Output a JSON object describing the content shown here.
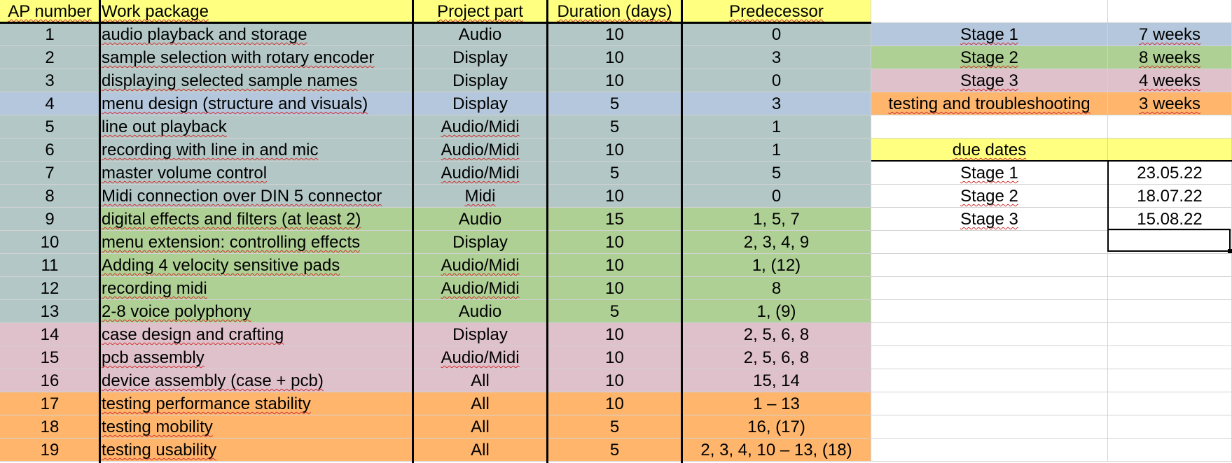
{
  "colors": {
    "header": "#ffff80",
    "teal": "#b3c8c6",
    "blue": "#b4c7dc",
    "green": "#afd095",
    "pink": "#dfc1cb",
    "orange": "#ffb66c",
    "gridline": "#d2d2d2"
  },
  "main_table": {
    "headers": [
      "AP number",
      "Work package",
      "Project part",
      "Duration (days)",
      "Predecessor"
    ],
    "rows": [
      {
        "ap": "1",
        "wp": "audio playback and storage",
        "part": "Audio",
        "dur": "10",
        "pred": "0",
        "bg": "teal",
        "ap_bg": "teal"
      },
      {
        "ap": "2",
        "wp": "sample selection with rotary encoder",
        "part": "Display",
        "dur": "10",
        "pred": "3",
        "bg": "teal",
        "ap_bg": "teal"
      },
      {
        "ap": "3",
        "wp": "displaying selected sample names",
        "part": "Display",
        "dur": "10",
        "pred": "0",
        "bg": "teal",
        "ap_bg": "teal"
      },
      {
        "ap": "4",
        "wp": "menu design (structure and visuals)",
        "part": "Display",
        "dur": "5",
        "pred": "3",
        "bg": "blue",
        "ap_bg": "blue"
      },
      {
        "ap": "5",
        "wp": "line out playback",
        "part": "Audio/Midi",
        "dur": "5",
        "pred": "1",
        "bg": "teal",
        "ap_bg": "teal"
      },
      {
        "ap": "6",
        "wp": "recording with line in and mic",
        "part": "Audio/Midi",
        "dur": "10",
        "pred": "1",
        "bg": "teal",
        "ap_bg": "teal"
      },
      {
        "ap": "7",
        "wp": "master volume control",
        "part": "Audio/Midi",
        "dur": "5",
        "pred": "5",
        "bg": "teal",
        "ap_bg": "teal"
      },
      {
        "ap": "8",
        "wp": "Midi connection over DIN 5 connector",
        "part": "Midi",
        "dur": "10",
        "pred": "0",
        "bg": "teal",
        "ap_bg": "teal"
      },
      {
        "ap": "9",
        "wp": "digital effects and filters (at least 2)",
        "part": "Audio",
        "dur": "15",
        "pred": "1, 5, 7",
        "bg": "green",
        "ap_bg": "teal"
      },
      {
        "ap": "10",
        "wp": "menu extension: controlling effects",
        "part": "Display",
        "dur": "10",
        "pred": "2, 3, 4, 9",
        "bg": "green",
        "ap_bg": "teal"
      },
      {
        "ap": "11",
        "wp": "Adding 4 velocity sensitive pads",
        "part": "Audio/Midi",
        "dur": "10",
        "pred": "1, (12)",
        "bg": "green",
        "ap_bg": "teal"
      },
      {
        "ap": "12",
        "wp": "recording midi",
        "part": "Audio/Midi",
        "dur": "10",
        "pred": "8",
        "bg": "green",
        "ap_bg": "teal"
      },
      {
        "ap": "13",
        "wp": "2-8 voice polyphony",
        "part": "Audio",
        "dur": "5",
        "pred": "1, (9)",
        "bg": "green",
        "ap_bg": "teal"
      },
      {
        "ap": "14",
        "wp": "case design and crafting",
        "part": "Display",
        "dur": "10",
        "pred": "2, 5, 6, 8",
        "bg": "pink",
        "ap_bg": "pink"
      },
      {
        "ap": "15",
        "wp": "pcb assembly",
        "part": "Audio/Midi",
        "dur": "10",
        "pred": "2, 5, 6, 8",
        "bg": "pink",
        "ap_bg": "pink"
      },
      {
        "ap": "16",
        "wp": "device assembly (case + pcb)",
        "part": "All",
        "dur": "10",
        "pred": "15, 14",
        "bg": "pink",
        "ap_bg": "pink"
      },
      {
        "ap": "17",
        "wp": "testing performance stability",
        "part": "All",
        "dur": "10",
        "pred": "1 – 13",
        "bg": "orange",
        "ap_bg": "orange"
      },
      {
        "ap": "18",
        "wp": "testing mobility",
        "part": "All",
        "dur": "5",
        "pred": "16, (17)",
        "bg": "orange",
        "ap_bg": "orange"
      },
      {
        "ap": "19",
        "wp": "testing usability",
        "part": "All",
        "dur": "5",
        "pred": "2, 3, 4, 10 – 13, (18)",
        "bg": "orange",
        "ap_bg": "orange"
      }
    ]
  },
  "stages_legend": [
    {
      "label": "Stage 1",
      "weeks": "7 weeks",
      "bg": "blue"
    },
    {
      "label": "Stage 2",
      "weeks": "8 weeks",
      "bg": "green"
    },
    {
      "label": "Stage 3",
      "weeks": "4 weeks",
      "bg": "pink"
    },
    {
      "label": "testing and troubleshooting",
      "weeks": "3 weeks",
      "bg": "orange"
    }
  ],
  "due_dates": {
    "header": "due dates",
    "rows": [
      {
        "label": "Stage 1",
        "date": "23.05.22"
      },
      {
        "label": "Stage 2",
        "date": "18.07.22"
      },
      {
        "label": "Stage 3",
        "date": "15.08.22"
      }
    ]
  }
}
